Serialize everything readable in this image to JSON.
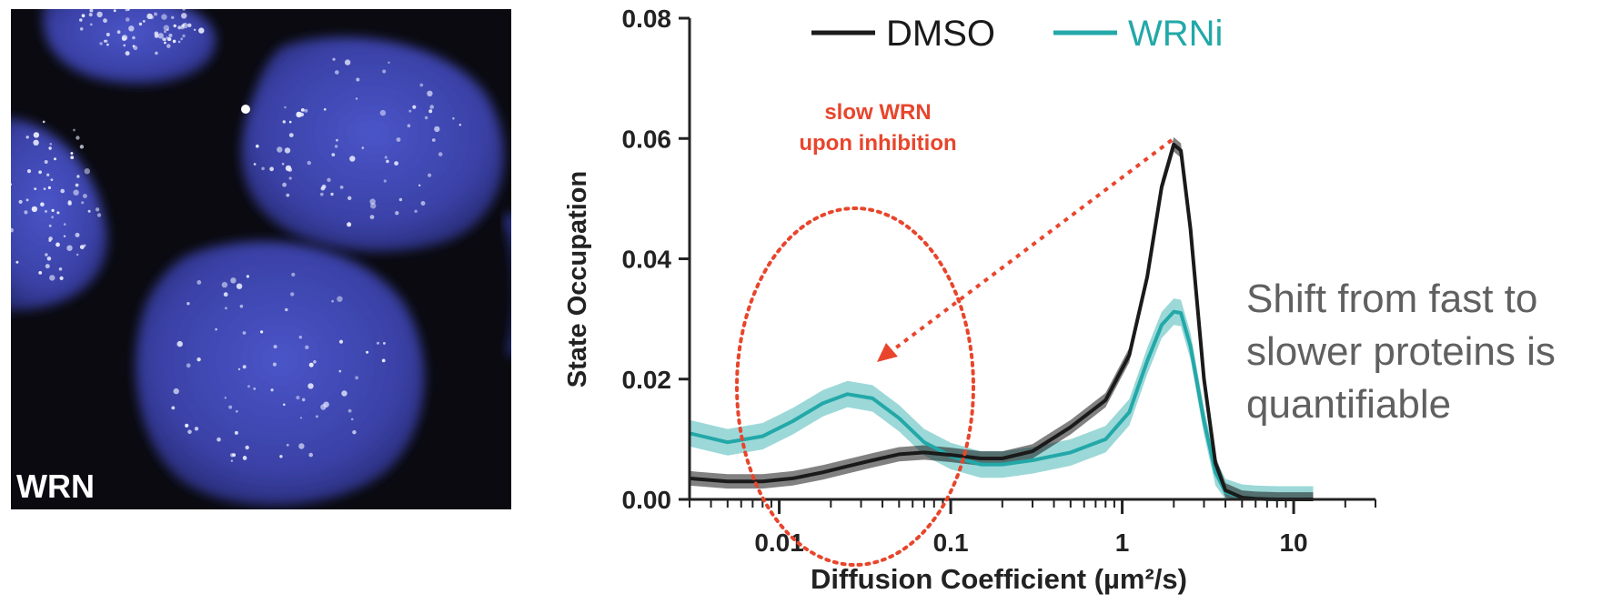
{
  "image_panel": {
    "label": "WRN"
  },
  "side_text": "Shift from fast to slower proteins is quantifiable",
  "colors": {
    "dmso": "#1a1a1a",
    "wrni": "#23a8a8",
    "annotation": "#e8452c"
  },
  "chart_data": {
    "type": "line",
    "title": "",
    "xlabel": "Diffusion Coefficient (µm²/s)",
    "ylabel": "State Occupation",
    "xscale": "log",
    "xlim": [
      0.003,
      30
    ],
    "ylim": [
      0,
      0.08
    ],
    "x_ticks": [
      0.01,
      0.1,
      1,
      10
    ],
    "x_tick_labels": [
      "0.01",
      "0.1",
      "1",
      "10"
    ],
    "y_ticks": [
      0,
      0.02,
      0.04,
      0.06,
      0.08
    ],
    "y_tick_labels": [
      "0.00",
      "0.02",
      "0.04",
      "0.06",
      "0.08"
    ],
    "legend": {
      "position": "top",
      "entries": [
        "DMSO",
        "WRNi"
      ]
    },
    "x": [
      0.003,
      0.005,
      0.008,
      0.012,
      0.018,
      0.025,
      0.035,
      0.05,
      0.07,
      0.1,
      0.15,
      0.2,
      0.3,
      0.5,
      0.8,
      1.1,
      1.4,
      1.7,
      2.0,
      2.2,
      2.5,
      3.0,
      3.5,
      4.0,
      5.0,
      6.0,
      8.0,
      10.0,
      13.0
    ],
    "series": [
      {
        "name": "DMSO",
        "values": [
          0.0035,
          0.003,
          0.003,
          0.0035,
          0.0045,
          0.0055,
          0.0065,
          0.0075,
          0.0078,
          0.0074,
          0.0068,
          0.0068,
          0.008,
          0.012,
          0.0165,
          0.024,
          0.037,
          0.052,
          0.059,
          0.058,
          0.045,
          0.02,
          0.006,
          0.0015,
          0.0003,
          0.0001,
          0.0,
          0.0,
          0.0
        ],
        "band": 0.0012
      },
      {
        "name": "WRNi",
        "values": [
          0.011,
          0.0095,
          0.0105,
          0.013,
          0.016,
          0.0175,
          0.0168,
          0.0135,
          0.0095,
          0.0072,
          0.0058,
          0.0058,
          0.0065,
          0.0078,
          0.01,
          0.0145,
          0.023,
          0.029,
          0.0312,
          0.031,
          0.0255,
          0.013,
          0.0045,
          0.0012,
          0.0003,
          0.0001,
          0.0,
          0.0,
          0.0
        ],
        "band": 0.0022
      }
    ],
    "annotations": [
      {
        "text_lines": [
          "slow WRN",
          "upon inhibition"
        ],
        "kind": "dotted-ellipse-with-arrow"
      }
    ]
  }
}
